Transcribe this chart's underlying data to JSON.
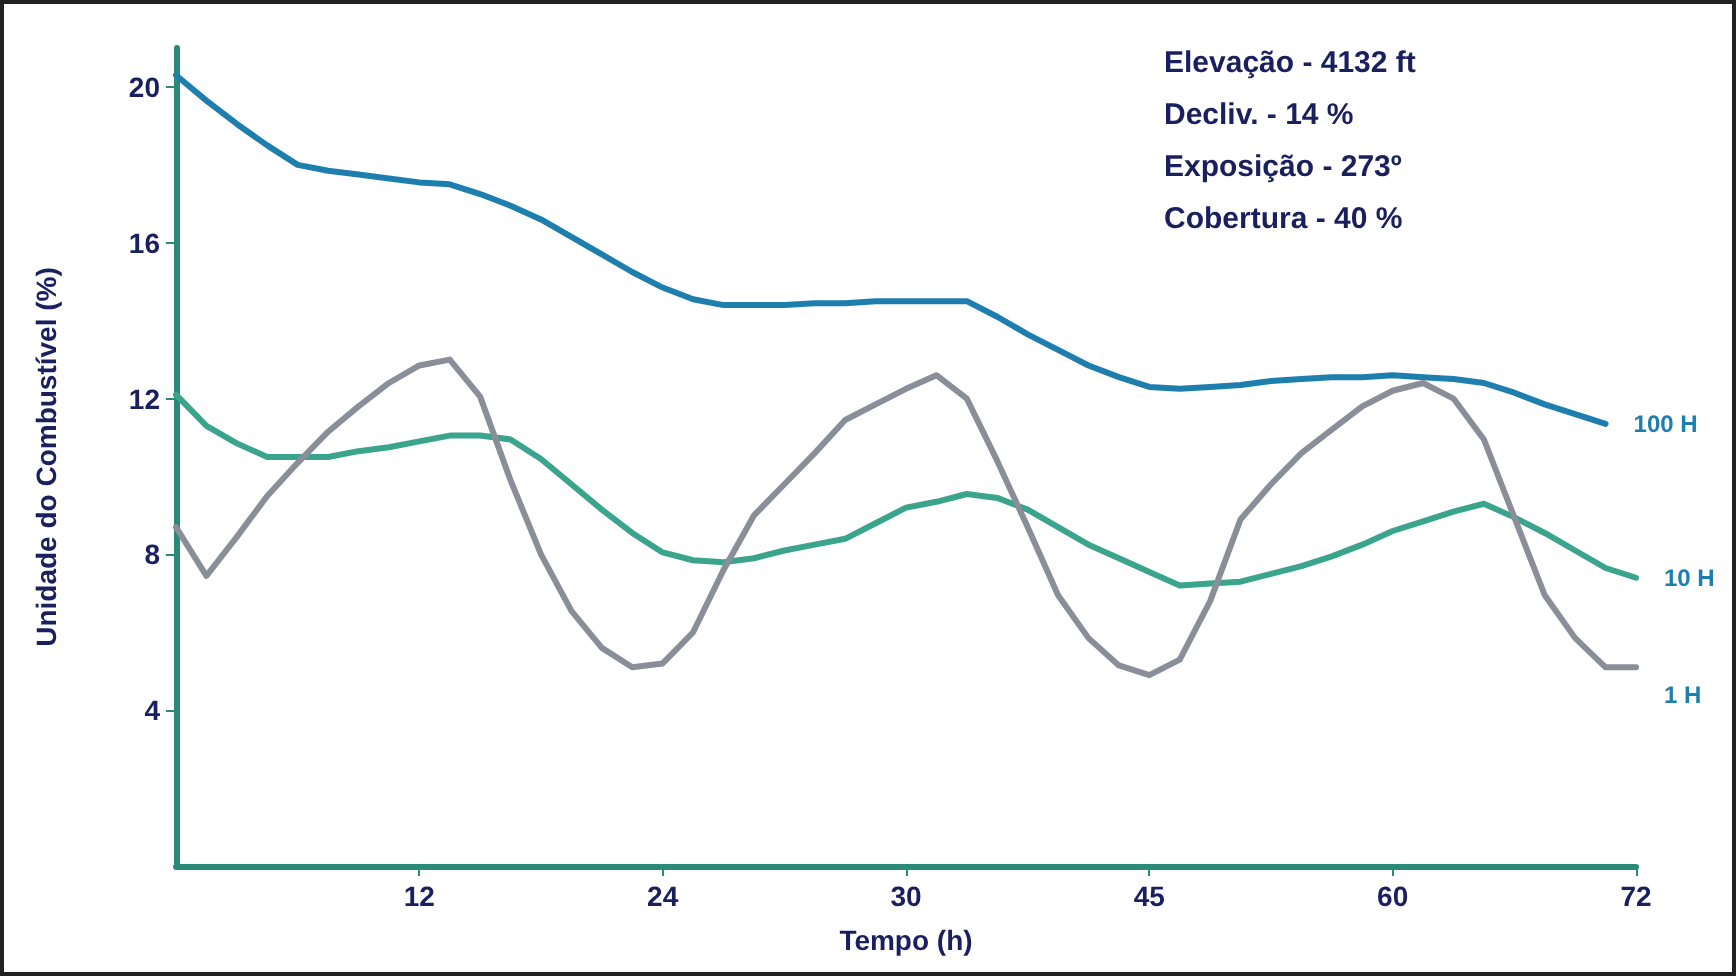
{
  "chart_data": {
    "type": "line",
    "xlabel": "Tempo (h)",
    "ylabel": "Unidade do Combustível (%)",
    "annotations": [
      "Elevação - 4132 ft",
      "Decliv. - 14 %",
      "Exposição - 273º",
      "Cobertura - 40 %"
    ],
    "categories": [
      null,
      null,
      null,
      null,
      null,
      null,
      null,
      null,
      "12",
      null,
      null,
      null,
      null,
      null,
      null,
      null,
      "24",
      null,
      null,
      null,
      null,
      null,
      null,
      null,
      "30",
      null,
      null,
      null,
      null,
      null,
      null,
      null,
      "45",
      null,
      null,
      null,
      null,
      null,
      null,
      null,
      "60",
      null,
      null,
      null,
      null,
      null,
      null,
      null,
      "72"
    ],
    "ylim": [
      0,
      21
    ],
    "yticks": [
      4,
      8,
      12,
      16,
      20
    ],
    "grid": false,
    "legend": false,
    "marker": "none",
    "line_style": "solid",
    "series": [
      {
        "name": "100 H",
        "color": "#1e7fae",
        "values": [
          20.3,
          19.65,
          19.05,
          18.5,
          18.0,
          17.85,
          17.75,
          17.65,
          17.55,
          17.5,
          17.25,
          16.95,
          16.6,
          16.15,
          15.7,
          15.25,
          14.85,
          14.55,
          14.4,
          14.4,
          14.4,
          14.45,
          14.45,
          14.5,
          14.5,
          14.5,
          14.5,
          14.1,
          13.65,
          13.25,
          12.85,
          12.55,
          12.3,
          12.25,
          12.3,
          12.35,
          12.45,
          12.5,
          12.55,
          12.55,
          12.6,
          12.55,
          12.5,
          12.4,
          12.15,
          11.85,
          11.6,
          11.35,
          null
        ]
      },
      {
        "name": "10 H",
        "color": "#3aa58c",
        "values": [
          12.1,
          11.3,
          10.85,
          10.5,
          10.5,
          10.5,
          10.65,
          10.75,
          10.9,
          11.05,
          11.05,
          10.95,
          10.45,
          9.8,
          9.15,
          8.55,
          8.05,
          7.85,
          7.8,
          7.9,
          8.1,
          8.25,
          8.4,
          8.8,
          9.2,
          9.35,
          9.55,
          9.45,
          9.15,
          8.7,
          8.25,
          7.9,
          7.55,
          7.2,
          7.25,
          7.3,
          7.5,
          7.7,
          7.95,
          8.25,
          8.6,
          8.85,
          9.1,
          9.3,
          8.95,
          8.55,
          8.1,
          7.65,
          7.4
        ]
      },
      {
        "name": "1 H",
        "color": "#8a8e99",
        "values": [
          8.7,
          7.45,
          8.45,
          9.5,
          10.35,
          11.15,
          11.8,
          12.4,
          12.85,
          13.0,
          12.05,
          9.9,
          8.0,
          6.55,
          5.6,
          5.1,
          5.2,
          6.0,
          7.6,
          9.0,
          9.8,
          10.6,
          11.45,
          11.85,
          12.25,
          12.6,
          12.0,
          10.4,
          8.7,
          6.95,
          5.85,
          5.15,
          4.9,
          5.3,
          6.8,
          8.9,
          9.8,
          10.6,
          11.2,
          11.8,
          12.2,
          12.4,
          12.0,
          10.95,
          8.95,
          6.95,
          5.85,
          5.1,
          5.1
        ]
      }
    ]
  }
}
